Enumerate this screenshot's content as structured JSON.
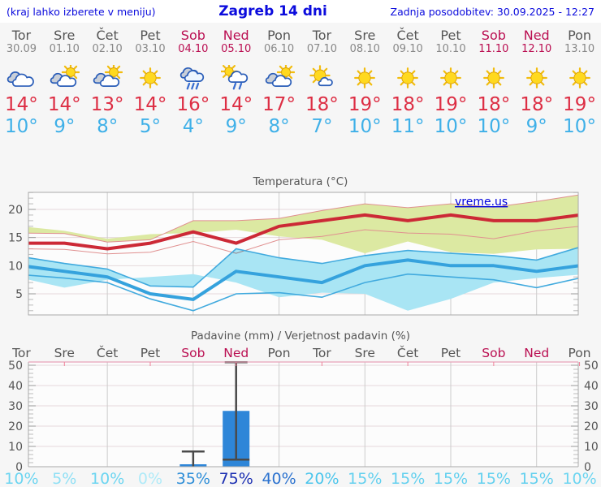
{
  "header": {
    "left_note": "(kraj lahko izberete v meniju)",
    "title": "Zagreb 14 dni",
    "updated": "Zadnja posodobitev: 30.09.2025 - 12:27"
  },
  "watermark": "vreme.us",
  "colors": {
    "header_blue": "#0b0bdd",
    "weekday": "#555555",
    "date_gray": "#888888",
    "weekend": "#ba0e51",
    "tmax_text": "#dd2e44",
    "tmin_text": "#3fb0e8",
    "tmax_line": "#cc2936",
    "tmax_band": "#dce9a2",
    "tmax_band_edge": "#e09090",
    "tmin_line": "#35a2dd",
    "tmin_band": "#a9e5f4",
    "tmin_band_edge": "#41aade",
    "bar_fill": "#2e86d8",
    "whisker": "#4a4a4a",
    "axis": "#aaaaaa",
    "grid": "#cccccc",
    "hgrid": "#e6d9db",
    "pink_axis": "#e8a2b8",
    "pink_tick": "#f08098",
    "tick_label": "#555555",
    "title": "#555555",
    "plot_bg": "#fcfcfc",
    "watermark_blue": "#0000dd"
  },
  "days": [
    {
      "name": "Tor",
      "date": "30.09",
      "weekend": false,
      "icon": "cloudy",
      "tmax": "14°",
      "tmin": "10°"
    },
    {
      "name": "Sre",
      "date": "01.10",
      "weekend": false,
      "icon": "partly-cloudy",
      "tmax": "14°",
      "tmin": "9°"
    },
    {
      "name": "Čet",
      "date": "02.10",
      "weekend": false,
      "icon": "partly-cloudy",
      "tmax": "13°",
      "tmin": "8°"
    },
    {
      "name": "Pet",
      "date": "03.10",
      "weekend": false,
      "icon": "sunny",
      "tmax": "14°",
      "tmin": "5°"
    },
    {
      "name": "Sob",
      "date": "04.10",
      "weekend": true,
      "icon": "rain",
      "tmax": "16°",
      "tmin": "4°"
    },
    {
      "name": "Ned",
      "date": "05.10",
      "weekend": true,
      "icon": "sun-rain",
      "tmax": "14°",
      "tmin": "9°"
    },
    {
      "name": "Pon",
      "date": "06.10",
      "weekend": false,
      "icon": "partly-cloudy",
      "tmax": "17°",
      "tmin": "8°"
    },
    {
      "name": "Tor",
      "date": "07.10",
      "weekend": false,
      "icon": "mostly-sunny",
      "tmax": "18°",
      "tmin": "7°"
    },
    {
      "name": "Sre",
      "date": "08.10",
      "weekend": false,
      "icon": "sunny",
      "tmax": "19°",
      "tmin": "10°"
    },
    {
      "name": "Čet",
      "date": "09.10",
      "weekend": false,
      "icon": "sunny",
      "tmax": "18°",
      "tmin": "11°"
    },
    {
      "name": "Pet",
      "date": "10.10",
      "weekend": false,
      "icon": "sunny",
      "tmax": "19°",
      "tmin": "10°"
    },
    {
      "name": "Sob",
      "date": "11.10",
      "weekend": true,
      "icon": "sunny",
      "tmax": "18°",
      "tmin": "10°"
    },
    {
      "name": "Ned",
      "date": "12.10",
      "weekend": true,
      "icon": "sunny",
      "tmax": "18°",
      "tmin": "9°"
    },
    {
      "name": "Pon",
      "date": "13.10",
      "weekend": false,
      "icon": "sunny",
      "tmax": "19°",
      "tmin": "10°"
    }
  ],
  "chart_data": [
    {
      "type": "area",
      "title": "Temperatura (°C)",
      "ylabel": "",
      "ylim": [
        1.25,
        23.03
      ],
      "yticks": [
        5,
        10,
        15,
        20
      ],
      "grid": true,
      "x_count": 14,
      "series": [
        {
          "name": "tmax_range_high",
          "values": [
            15.8,
            15.7,
            14.2,
            14.6,
            18,
            18,
            18.4,
            19.8,
            21,
            20.3,
            21,
            20.4,
            21.4,
            22.6
          ]
        },
        {
          "name": "tmax_range_low",
          "values": [
            13,
            12.9,
            12.1,
            12.4,
            14.3,
            12.2,
            14.6,
            15.2,
            16.4,
            15.8,
            15.6,
            14.8,
            16.2,
            17
          ]
        },
        {
          "name": "tmax",
          "values": [
            14,
            14,
            13,
            14,
            16,
            14,
            17,
            18,
            19,
            18,
            19,
            18,
            18,
            19
          ]
        },
        {
          "name": "tmin_range_high",
          "values": [
            11.6,
            10.4,
            9.4,
            6.4,
            6.2,
            13,
            11.4,
            10.4,
            11.8,
            12.7,
            12.2,
            11.8,
            11,
            13.3
          ]
        },
        {
          "name": "tmin_range_low",
          "values": [
            8.4,
            7.8,
            7,
            4.1,
            2,
            5,
            5.2,
            4.4,
            7,
            8.5,
            8,
            7.5,
            6.1,
            7.8
          ]
        },
        {
          "name": "tmin",
          "values": [
            10,
            9,
            8,
            5,
            4,
            9,
            8,
            7,
            10,
            11,
            10,
            10,
            9,
            10
          ]
        }
      ]
    },
    {
      "type": "bar",
      "title": "Padavine (mm) / Verjetnost padavin (%)",
      "x_labels": [
        "Tor",
        "Sre",
        "Čet",
        "Pet",
        "Sob",
        "Ned",
        "Pon",
        "Tor",
        "Sre",
        "Čet",
        "Pet",
        "Sob",
        "Ned",
        "Pon"
      ],
      "weekend_flags": [
        false,
        false,
        false,
        false,
        true,
        true,
        false,
        false,
        false,
        false,
        false,
        true,
        true,
        false
      ],
      "ylim": [
        0,
        51.6
      ],
      "yticks": [
        0,
        10,
        20,
        30,
        40,
        50
      ],
      "grid": true,
      "precip_mm": [
        0,
        0,
        0,
        0,
        1.2,
        27.5,
        0,
        0,
        0,
        0,
        0,
        0,
        0,
        0
      ],
      "whisker_low": [
        null,
        null,
        null,
        null,
        0,
        3.5,
        null,
        null,
        null,
        null,
        null,
        null,
        null,
        null
      ],
      "whisker_high": [
        null,
        null,
        null,
        null,
        7.5,
        51.5,
        null,
        null,
        null,
        null,
        null,
        null,
        null,
        null
      ],
      "probability": [
        "10%",
        "5%",
        "10%",
        "0%",
        "35%",
        "75%",
        "40%",
        "20%",
        "15%",
        "15%",
        "15%",
        "15%",
        "15%",
        "10%"
      ],
      "probability_colors": [
        "#6cd5f1",
        "#90e0f5",
        "#6cd5f1",
        "#aeeaf8",
        "#2e8ed8",
        "#1b2fb2",
        "#2b72cf",
        "#4ac5ec",
        "#63d0ef",
        "#63d0ef",
        "#63d0ef",
        "#63d0ef",
        "#63d0ef",
        "#6cd5f1"
      ]
    }
  ]
}
